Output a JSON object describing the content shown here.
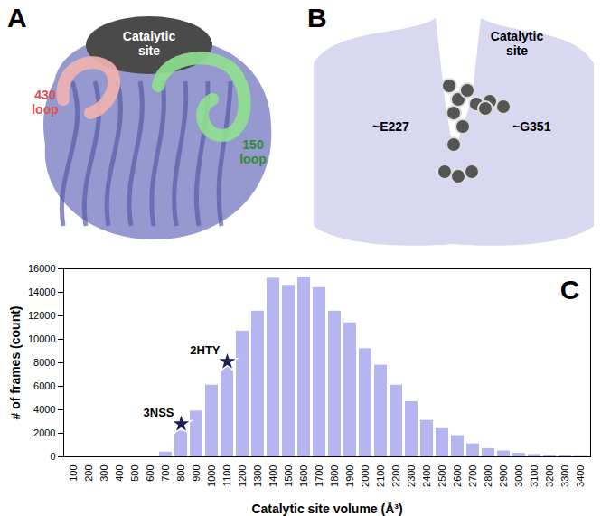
{
  "diagram": {
    "panels": [
      {
        "label": "A",
        "texts": [
          "Catalytic site",
          "430 loop",
          "150 loop"
        ]
      },
      {
        "label": "B",
        "texts": [
          "Catalytic site",
          "~E227",
          "~G351"
        ]
      }
    ]
  },
  "chart_data": {
    "type": "bar",
    "panel_label": "C",
    "x_label": "Catalytic site volume (Å³)",
    "y_label": "# of frames (count)",
    "categories": [
      "100",
      "200",
      "300",
      "400",
      "500",
      "600",
      "700",
      "800",
      "900",
      "1000",
      "1100",
      "1200",
      "1300",
      "1400",
      "1500",
      "1600",
      "1700",
      "1800",
      "1900",
      "2000",
      "2100",
      "2200",
      "2300",
      "2400",
      "2500",
      "2600",
      "2700",
      "2800",
      "2900",
      "3000",
      "3100",
      "3200",
      "3300",
      "3400"
    ],
    "values": [
      0,
      0,
      0,
      0,
      0,
      0,
      400,
      2200,
      3900,
      6100,
      7600,
      10700,
      12400,
      15200,
      14600,
      15300,
      14400,
      12400,
      11400,
      9200,
      7800,
      6100,
      4700,
      3100,
      2400,
      1800,
      1100,
      700,
      500,
      300,
      200,
      130,
      80,
      40
    ],
    "color": "#b5b5ef",
    "ylim": [
      0,
      16000
    ],
    "yticks": [
      0,
      2000,
      4000,
      6000,
      8000,
      10000,
      12000,
      14000,
      16000
    ],
    "grid": false,
    "annotations": [
      {
        "text": "3NSS",
        "x": "800",
        "y": 2800,
        "marker": "star"
      },
      {
        "text": "2HTY",
        "x": "1100",
        "y": 8100,
        "marker": "star"
      }
    ]
  }
}
